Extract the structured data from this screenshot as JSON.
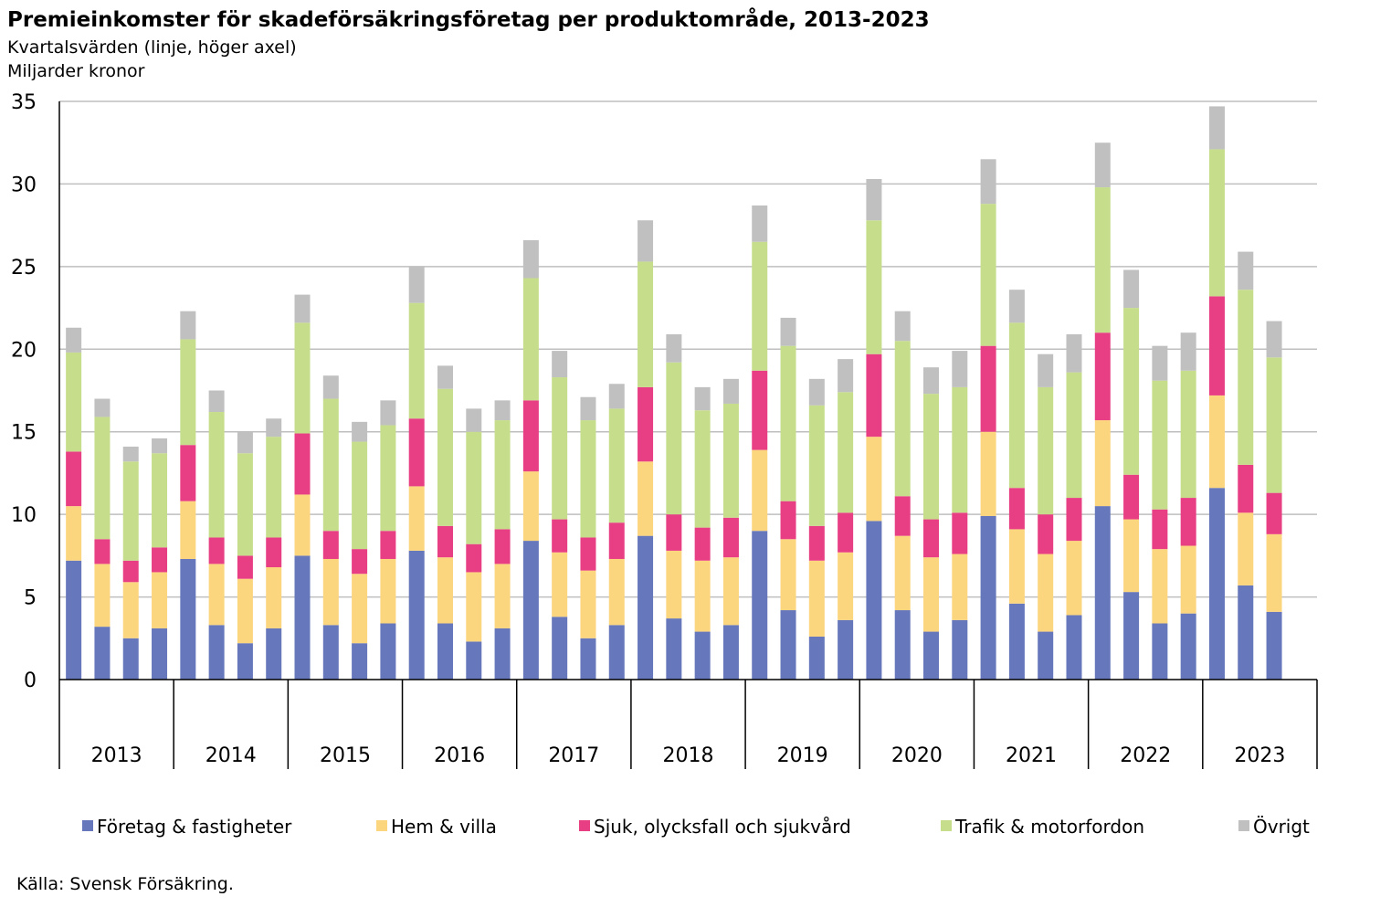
{
  "chart_data": {
    "type": "bar",
    "stacked": true,
    "title": "Premieinkomster för skadeförsäkringsföretag per produktområde, 2013-2023",
    "subtitle": "Kvartalsvärden (linje, höger axel)",
    "unit_label": "Miljarder kronor",
    "source": "Källa: Svensk Försäkring.",
    "ylim": [
      0,
      35
    ],
    "yticks": [
      "0",
      "5",
      "10",
      "15",
      "20",
      "25",
      "30",
      "35"
    ],
    "ytick_values": [
      0,
      5,
      10,
      15,
      20,
      25,
      30,
      35
    ],
    "grid": true,
    "legend_position": "bottom",
    "years": [
      "2013",
      "2014",
      "2015",
      "2016",
      "2017",
      "2018",
      "2019",
      "2020",
      "2021",
      "2022",
      "2023"
    ],
    "quarters_per_year": 4,
    "series": [
      {
        "name": "Företag & fastigheter",
        "color": "#6677BB",
        "values": [
          7.2,
          3.2,
          2.5,
          3.1,
          7.3,
          3.3,
          2.2,
          3.1,
          7.5,
          3.3,
          2.2,
          3.4,
          7.8,
          3.4,
          2.3,
          3.1,
          8.4,
          3.8,
          2.5,
          3.3,
          8.7,
          3.7,
          2.9,
          3.3,
          9.0,
          4.2,
          2.6,
          3.6,
          9.6,
          4.2,
          2.9,
          3.6,
          9.9,
          4.6,
          2.9,
          3.9,
          10.5,
          5.3,
          3.4,
          4.0,
          11.6,
          5.7,
          4.1
        ]
      },
      {
        "name": "Hem & villa",
        "color": "#FCD57F",
        "values": [
          3.3,
          3.8,
          3.4,
          3.4,
          3.5,
          3.7,
          3.9,
          3.7,
          3.7,
          4.0,
          4.2,
          3.9,
          3.9,
          4.0,
          4.2,
          3.9,
          4.2,
          3.9,
          4.1,
          4.0,
          4.5,
          4.1,
          4.3,
          4.1,
          4.9,
          4.3,
          4.6,
          4.1,
          5.1,
          4.5,
          4.5,
          4.0,
          5.1,
          4.5,
          4.7,
          4.5,
          5.2,
          4.4,
          4.5,
          4.1,
          5.6,
          4.4,
          4.7
        ]
      },
      {
        "name": "Sjuk, olycksfall och sjukvård",
        "color": "#E83E84",
        "values": [
          3.3,
          1.5,
          1.3,
          1.5,
          3.4,
          1.6,
          1.4,
          1.8,
          3.7,
          1.7,
          1.5,
          1.7,
          4.1,
          1.9,
          1.7,
          2.1,
          4.3,
          2.0,
          2.0,
          2.2,
          4.5,
          2.2,
          2.0,
          2.4,
          4.8,
          2.3,
          2.1,
          2.4,
          5.0,
          2.4,
          2.3,
          2.5,
          5.2,
          2.5,
          2.4,
          2.6,
          5.3,
          2.7,
          2.4,
          2.9,
          6.0,
          2.9,
          2.5
        ]
      },
      {
        "name": "Trafik & motorfordon",
        "color": "#C6DE8C",
        "values": [
          6.0,
          7.4,
          6.0,
          5.7,
          6.4,
          7.6,
          6.2,
          6.1,
          6.7,
          8.0,
          6.5,
          6.4,
          7.0,
          8.3,
          6.8,
          6.6,
          7.4,
          8.6,
          7.1,
          6.9,
          7.6,
          9.2,
          7.1,
          6.9,
          7.8,
          9.4,
          7.3,
          7.3,
          8.1,
          9.4,
          7.6,
          7.6,
          8.6,
          10.0,
          7.7,
          7.6,
          8.8,
          10.1,
          7.8,
          7.7,
          8.9,
          10.6,
          8.2
        ]
      },
      {
        "name": "Övrigt",
        "color": "#C0C0C0",
        "values": [
          1.5,
          1.1,
          0.9,
          0.9,
          1.7,
          1.3,
          1.3,
          1.1,
          1.7,
          1.4,
          1.2,
          1.5,
          2.2,
          1.4,
          1.4,
          1.2,
          2.3,
          1.6,
          1.4,
          1.5,
          2.5,
          1.7,
          1.4,
          1.5,
          2.2,
          1.7,
          1.6,
          2.0,
          2.5,
          1.8,
          1.6,
          2.2,
          2.7,
          2.0,
          2.0,
          2.3,
          2.7,
          2.3,
          2.1,
          2.3,
          2.6,
          2.3,
          2.2
        ]
      }
    ]
  }
}
